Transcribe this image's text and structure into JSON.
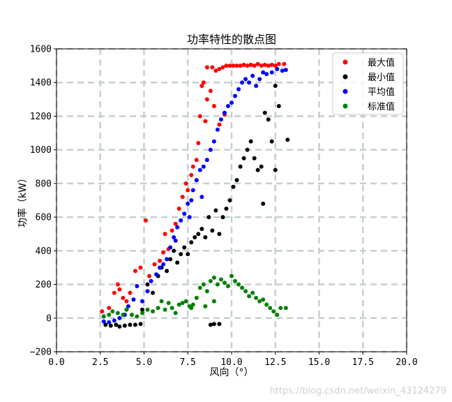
{
  "chart_data": {
    "type": "scatter",
    "title": "功率特性的散点图",
    "xlabel": "风向（°）",
    "ylabel": "功率（kW）",
    "xlim": [
      0,
      20
    ],
    "ylim": [
      -200,
      1600
    ],
    "xticks": [
      0,
      2.5,
      5,
      7.5,
      10,
      12.5,
      15,
      17.5,
      20
    ],
    "xtick_labels": [
      "0.0",
      "2.5",
      "5.0",
      "7.5",
      "10.0",
      "12.5",
      "15.0",
      "17.5",
      "20.0"
    ],
    "yticks": [
      -200,
      0,
      200,
      400,
      600,
      800,
      1000,
      1200,
      1400,
      1600
    ],
    "ytick_labels": [
      "−200",
      "0",
      "200",
      "400",
      "600",
      "800",
      "1000",
      "1200",
      "1400",
      "1600"
    ],
    "grid": true,
    "legend_position": "top-right",
    "series": [
      {
        "name": "最大值",
        "color": "#ff0000",
        "points": [
          [
            2.6,
            40
          ],
          [
            3.0,
            60
          ],
          [
            3.3,
            150
          ],
          [
            3.5,
            200
          ],
          [
            3.6,
            170
          ],
          [
            3.8,
            120
          ],
          [
            4.0,
            100
          ],
          [
            4.2,
            150
          ],
          [
            4.5,
            280
          ],
          [
            4.8,
            300
          ],
          [
            5.1,
            580
          ],
          [
            5.3,
            250
          ],
          [
            5.6,
            320
          ],
          [
            5.9,
            340
          ],
          [
            6.1,
            390
          ],
          [
            6.2,
            500
          ],
          [
            6.4,
            410
          ],
          [
            6.6,
            520
          ],
          [
            6.8,
            560
          ],
          [
            7.0,
            650
          ],
          [
            7.2,
            720
          ],
          [
            7.4,
            800
          ],
          [
            7.5,
            760
          ],
          [
            7.7,
            850
          ],
          [
            7.8,
            900
          ],
          [
            8.0,
            940
          ],
          [
            8.1,
            1040
          ],
          [
            8.2,
            1200
          ],
          [
            8.3,
            1380
          ],
          [
            8.4,
            1400
          ],
          [
            8.5,
            1170
          ],
          [
            8.6,
            1300
          ],
          [
            8.8,
            1350
          ],
          [
            8.9,
            1490
          ],
          [
            9.1,
            1470
          ],
          [
            9.3,
            1480
          ],
          [
            9.5,
            1490
          ],
          [
            9.7,
            1500
          ],
          [
            9.9,
            1500
          ],
          [
            10.1,
            1500
          ],
          [
            10.3,
            1500
          ],
          [
            10.5,
            1500
          ],
          [
            10.7,
            1505
          ],
          [
            10.9,
            1500
          ],
          [
            11.1,
            1505
          ],
          [
            11.3,
            1500
          ],
          [
            11.5,
            1510
          ],
          [
            11.7,
            1500
          ],
          [
            11.9,
            1505
          ],
          [
            12.1,
            1500
          ],
          [
            12.3,
            1505
          ],
          [
            12.5,
            1500
          ],
          [
            12.7,
            1510
          ],
          [
            13.0,
            1510
          ],
          [
            8.6,
            1490
          ],
          [
            9.0,
            1260
          ],
          [
            9.6,
            1210
          ],
          [
            9.3,
            1150
          ]
        ]
      },
      {
        "name": "最小值",
        "color": "#000000",
        "points": [
          [
            2.8,
            -40
          ],
          [
            3.1,
            -45
          ],
          [
            3.4,
            -40
          ],
          [
            3.6,
            -50
          ],
          [
            3.9,
            -45
          ],
          [
            4.2,
            -40
          ],
          [
            4.5,
            -40
          ],
          [
            4.8,
            -35
          ],
          [
            4.9,
            50
          ],
          [
            5.2,
            200
          ],
          [
            5.5,
            150
          ],
          [
            5.8,
            250
          ],
          [
            6.0,
            300
          ],
          [
            6.3,
            280
          ],
          [
            6.5,
            350
          ],
          [
            6.7,
            400
          ],
          [
            6.9,
            330
          ],
          [
            7.1,
            380
          ],
          [
            7.3,
            420
          ],
          [
            7.5,
            380
          ],
          [
            7.7,
            450
          ],
          [
            7.9,
            480
          ],
          [
            8.1,
            500
          ],
          [
            8.3,
            530
          ],
          [
            8.5,
            480
          ],
          [
            8.7,
            600
          ],
          [
            8.9,
            520
          ],
          [
            9.1,
            640
          ],
          [
            9.3,
            500
          ],
          [
            9.5,
            600
          ],
          [
            9.7,
            650
          ],
          [
            9.9,
            700
          ],
          [
            10.1,
            780
          ],
          [
            10.3,
            820
          ],
          [
            10.5,
            900
          ],
          [
            10.7,
            950
          ],
          [
            10.9,
            1000
          ],
          [
            11.1,
            1050
          ],
          [
            11.3,
            950
          ],
          [
            11.5,
            880
          ],
          [
            11.7,
            900
          ],
          [
            11.9,
            1220
          ],
          [
            12.1,
            1180
          ],
          [
            12.3,
            1050
          ],
          [
            12.5,
            1380
          ],
          [
            12.7,
            1260
          ],
          [
            13.2,
            1060
          ],
          [
            12.5,
            880
          ],
          [
            11.8,
            680
          ],
          [
            9.0,
            -35
          ],
          [
            8.8,
            -40
          ],
          [
            9.3,
            -35
          ]
        ]
      },
      {
        "name": "平均值",
        "color": "#0000ff",
        "points": [
          [
            2.7,
            -20
          ],
          [
            3.0,
            -25
          ],
          [
            3.3,
            -15
          ],
          [
            3.6,
            0
          ],
          [
            3.9,
            20
          ],
          [
            4.1,
            70
          ],
          [
            4.4,
            110
          ],
          [
            4.6,
            190
          ],
          [
            4.9,
            100
          ],
          [
            5.2,
            160
          ],
          [
            5.4,
            220
          ],
          [
            5.7,
            260
          ],
          [
            5.9,
            300
          ],
          [
            6.1,
            320
          ],
          [
            6.3,
            350
          ],
          [
            6.5,
            420
          ],
          [
            6.7,
            480
          ],
          [
            6.9,
            540
          ],
          [
            7.1,
            580
          ],
          [
            7.3,
            620
          ],
          [
            7.5,
            680
          ],
          [
            7.7,
            700
          ],
          [
            7.8,
            760
          ],
          [
            8.0,
            820
          ],
          [
            8.2,
            880
          ],
          [
            8.4,
            900
          ],
          [
            8.6,
            940
          ],
          [
            8.8,
            1000
          ],
          [
            9.0,
            1050
          ],
          [
            9.2,
            1120
          ],
          [
            9.4,
            1180
          ],
          [
            9.6,
            1220
          ],
          [
            9.8,
            1260
          ],
          [
            10.0,
            1280
          ],
          [
            10.2,
            1320
          ],
          [
            10.4,
            1360
          ],
          [
            10.6,
            1400
          ],
          [
            10.8,
            1420
          ],
          [
            11.0,
            1400
          ],
          [
            11.2,
            1440
          ],
          [
            11.4,
            1380
          ],
          [
            11.6,
            1420
          ],
          [
            11.8,
            1460
          ],
          [
            12.0,
            1450
          ],
          [
            12.3,
            1460
          ],
          [
            12.6,
            1480
          ],
          [
            12.9,
            1470
          ],
          [
            13.1,
            1475
          ],
          [
            8.3,
            720
          ],
          [
            7.6,
            600
          ],
          [
            6.8,
            460
          ]
        ]
      },
      {
        "name": "标准值",
        "color": "#008000",
        "points": [
          [
            2.7,
            10
          ],
          [
            3.0,
            20
          ],
          [
            3.2,
            40
          ],
          [
            3.5,
            30
          ],
          [
            3.8,
            20
          ],
          [
            4.0,
            50
          ],
          [
            4.3,
            20
          ],
          [
            4.6,
            10
          ],
          [
            4.9,
            30
          ],
          [
            5.2,
            50
          ],
          [
            5.5,
            40
          ],
          [
            5.8,
            60
          ],
          [
            6.0,
            100
          ],
          [
            6.2,
            50
          ],
          [
            6.4,
            90
          ],
          [
            6.6,
            60
          ],
          [
            6.8,
            30
          ],
          [
            7.0,
            80
          ],
          [
            7.2,
            90
          ],
          [
            7.4,
            100
          ],
          [
            7.6,
            70
          ],
          [
            7.8,
            80
          ],
          [
            8.0,
            120
          ],
          [
            8.2,
            180
          ],
          [
            8.4,
            200
          ],
          [
            8.6,
            160
          ],
          [
            8.8,
            220
          ],
          [
            9.0,
            240
          ],
          [
            9.2,
            200
          ],
          [
            9.4,
            230
          ],
          [
            9.6,
            210
          ],
          [
            9.8,
            190
          ],
          [
            10.0,
            250
          ],
          [
            10.2,
            220
          ],
          [
            10.4,
            200
          ],
          [
            10.6,
            180
          ],
          [
            10.8,
            160
          ],
          [
            11.0,
            130
          ],
          [
            11.2,
            150
          ],
          [
            11.4,
            120
          ],
          [
            11.6,
            100
          ],
          [
            11.8,
            110
          ],
          [
            12.0,
            80
          ],
          [
            12.2,
            60
          ],
          [
            12.4,
            40
          ],
          [
            12.6,
            20
          ],
          [
            12.8,
            60
          ],
          [
            13.1,
            60
          ],
          [
            8.5,
            70
          ],
          [
            9.0,
            100
          ],
          [
            7.7,
            60
          ]
        ]
      }
    ]
  },
  "watermark": "https://blog.csdn.net/weixin_43124279"
}
